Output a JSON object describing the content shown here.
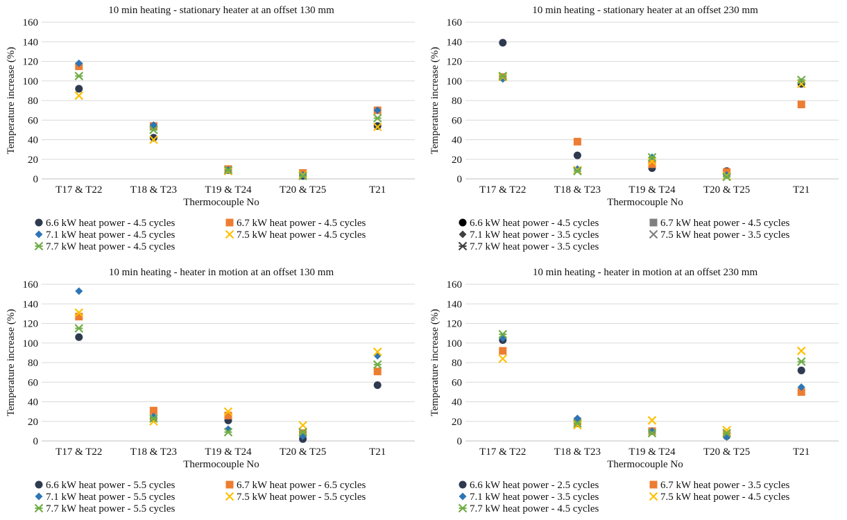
{
  "chart_data": [
    {
      "type": "scatter",
      "title": "10 min heating - stationary heater at an offset 130 mm",
      "xlabel": "Thermocouple No",
      "ylabel": "Temperature increase (%)",
      "categories": [
        "T17 & T22",
        "T18 & T23",
        "T19 & T24",
        "T20 & T25",
        "T21"
      ],
      "ylim": [
        0,
        160
      ],
      "yticks": [
        "0",
        "20",
        "40",
        "60",
        "80",
        "100",
        "120",
        "140",
        "160"
      ],
      "grid": true,
      "legend_position": "bottom",
      "series": [
        {
          "name": "6.6 kW heat power - 4.5 cycles",
          "marker": "circle",
          "color": "#2e3a4f",
          "values": [
            92,
            42,
            9,
            3,
            54
          ]
        },
        {
          "name": "6.7 kW heat power - 4.5 cycles",
          "marker": "square",
          "color": "#ed7d31",
          "values": [
            115,
            54,
            10,
            6,
            70
          ]
        },
        {
          "name": "7.1 kW heat power - 4.5 cycles",
          "marker": "diamond",
          "color": "#2e75b6",
          "values": [
            118,
            55,
            9,
            4,
            70
          ]
        },
        {
          "name": "7.5 kW heat power - 4.5 cycles",
          "marker": "x",
          "color": "#ffc000",
          "values": [
            85,
            40,
            8,
            4,
            53
          ]
        },
        {
          "name": "7.7 kW heat power - 4.5 cycles",
          "marker": "star",
          "color": "#70ad47",
          "values": [
            105,
            50,
            9,
            3,
            62
          ]
        }
      ]
    },
    {
      "type": "scatter",
      "title": "10 min heating - stationary heater at an offset 230 mm",
      "xlabel": "Thermocouple No",
      "ylabel": "Temperature increase (%)",
      "categories": [
        "T17 & T22",
        "T18 & T23",
        "T19 & T24",
        "T20 & T25",
        "T21"
      ],
      "ylim": [
        0,
        160
      ],
      "yticks": [
        "0",
        "20",
        "40",
        "60",
        "80",
        "100",
        "120",
        "140",
        "160"
      ],
      "grid": true,
      "legend_position": "bottom",
      "series": [
        {
          "name": "6.6 kW heat power - 4.5 cycles",
          "marker": "circle",
          "color": "#000000",
          "values": [
            139,
            24,
            11,
            8,
            97
          ],
          "legend_marker_color": "#000000",
          "plot_color": "#2e3a4f"
        },
        {
          "name": "6.7 kW heat power - 4.5 cycles",
          "marker": "square",
          "color": "#ed7d31",
          "values": [
            104,
            38,
            15,
            7,
            76
          ],
          "legend_marker_color": "#7f7f7f"
        },
        {
          "name": "7.1 kW heat power - 3.5 cycles",
          "marker": "diamond",
          "color": "#2e75b6",
          "values": [
            102,
            10,
            22,
            4,
            99
          ],
          "legend_marker_color": "#404040"
        },
        {
          "name": "7.5 kW heat power - 3.5 cycles",
          "marker": "x",
          "color": "#ffc000",
          "values": [
            104,
            9,
            18,
            3,
            97
          ],
          "legend_marker_color": "#7f7f7f"
        },
        {
          "name": "7.7 kW heat power - 3.5 cycles",
          "marker": "star",
          "color": "#70ad47",
          "values": [
            105,
            8,
            22,
            2,
            101
          ],
          "legend_marker_color": "#404040"
        }
      ]
    },
    {
      "type": "scatter",
      "title": "10 min heating - heater in motion at an offset 130 mm",
      "xlabel": "Thermocouple No",
      "ylabel": "Temperature increase (%)",
      "categories": [
        "T17 & T22",
        "T18 & T23",
        "T19 & T24",
        "T20 & T25",
        "T21"
      ],
      "ylim": [
        0,
        160
      ],
      "yticks": [
        "0",
        "20",
        "40",
        "60",
        "80",
        "100",
        "120",
        "140",
        "160"
      ],
      "grid": true,
      "legend_position": "bottom",
      "series": [
        {
          "name": "6.6 kW heat power - 5.5 cycles",
          "marker": "circle",
          "color": "#2e3a4f",
          "values": [
            106,
            23,
            21,
            2,
            57
          ]
        },
        {
          "name": "6.7 kW heat power - 6.5 cycles",
          "marker": "square",
          "color": "#ed7d31",
          "values": [
            127,
            31,
            26,
            8,
            71
          ]
        },
        {
          "name": "7.1 kW heat power - 5.5 cycles",
          "marker": "diamond",
          "color": "#2e75b6",
          "values": [
            153,
            25,
            12,
            5,
            87
          ]
        },
        {
          "name": "7.5 kW heat power - 5.5 cycles",
          "marker": "x",
          "color": "#ffc000",
          "values": [
            131,
            20,
            30,
            16,
            91
          ]
        },
        {
          "name": "7.7 kW heat power - 5.5 cycles",
          "marker": "star",
          "color": "#70ad47",
          "values": [
            115,
            23,
            9,
            9,
            78
          ]
        }
      ]
    },
    {
      "type": "scatter",
      "title": "10 min heating - heater in motion at an offset 230 mm",
      "xlabel": "Thermocouple No",
      "ylabel": "Temperature increase (%)",
      "categories": [
        "T17 & T22",
        "T18 & T23",
        "T19 & T24",
        "T20 & T25",
        "T21"
      ],
      "ylim": [
        0,
        160
      ],
      "yticks": [
        "0",
        "20",
        "40",
        "60",
        "80",
        "100",
        "120",
        "140",
        "160"
      ],
      "grid": true,
      "legend_position": "bottom",
      "series": [
        {
          "name": "6.6 kW heat power - 2.5 cycles",
          "marker": "circle",
          "color": "#2e3a4f",
          "values": [
            103,
            18,
            10,
            5,
            72
          ]
        },
        {
          "name": "6.7 kW heat power - 3.5 cycles",
          "marker": "square",
          "color": "#ed7d31",
          "values": [
            92,
            20,
            10,
            7,
            50
          ]
        },
        {
          "name": "7.1 kW heat power - 3.5 cycles",
          "marker": "diamond",
          "color": "#2e75b6",
          "values": [
            105,
            23,
            10,
            4,
            55
          ]
        },
        {
          "name": "7.5 kW heat power - 4.5 cycles",
          "marker": "x",
          "color": "#ffc000",
          "values": [
            84,
            16,
            21,
            11,
            92
          ]
        },
        {
          "name": "7.7 kW heat power - 4.5 cycles",
          "marker": "star",
          "color": "#70ad47",
          "values": [
            109,
            18,
            8,
            8,
            81
          ]
        }
      ]
    }
  ]
}
